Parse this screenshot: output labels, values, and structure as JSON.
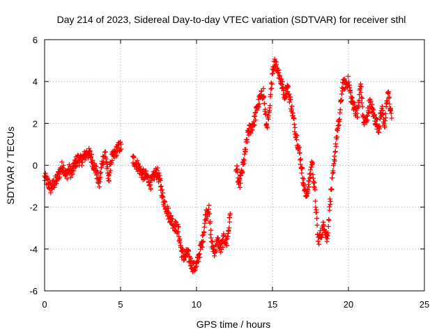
{
  "chart_data": {
    "type": "scatter",
    "title": "Day 214 of 2023, Sidereal Day-to-day VTEC variation (SDTVAR) for receiver sthl",
    "xlabel": "GPS time / hours",
    "ylabel": "SDTVAR / TECUs",
    "xlim": [
      0,
      25
    ],
    "ylim": [
      -6,
      6
    ],
    "xticks": [
      "0",
      "5",
      "10",
      "15",
      "20",
      "25"
    ],
    "yticks": [
      "-6",
      "-4",
      "-2",
      "0",
      "2",
      "4",
      "6"
    ],
    "grid": true,
    "marker": "plus",
    "color": "#ff0000",
    "series": [
      {
        "name": "SDTVAR",
        "x": [
          0.0,
          0.2,
          0.4,
          0.6,
          0.8,
          1.0,
          1.2,
          1.4,
          1.6,
          1.8,
          2.0,
          2.2,
          2.4,
          2.6,
          2.8,
          3.0,
          3.2,
          3.4,
          3.6,
          3.8,
          4.0,
          4.2,
          4.4,
          4.6,
          4.8,
          5.0,
          5.8,
          6.0,
          6.2,
          6.4,
          6.6,
          6.8,
          7.0,
          7.2,
          7.4,
          7.6,
          7.8,
          8.0,
          8.2,
          8.4,
          8.6,
          8.8,
          9.0,
          9.2,
          9.4,
          9.6,
          9.8,
          10.0,
          10.2,
          10.4,
          10.6,
          10.8,
          11.0,
          11.2,
          11.4,
          11.6,
          11.8,
          12.0,
          12.2,
          12.6,
          12.8,
          13.0,
          13.2,
          13.4,
          13.6,
          13.8,
          14.0,
          14.2,
          14.4,
          14.6,
          14.8,
          15.0,
          15.2,
          15.4,
          15.6,
          15.8,
          16.0,
          16.2,
          16.4,
          16.6,
          16.8,
          17.0,
          17.2,
          17.4,
          17.6,
          17.8,
          18.0,
          18.2,
          18.4,
          18.6,
          18.8,
          19.0,
          19.2,
          19.4,
          19.6,
          19.8,
          20.0,
          20.2,
          20.4,
          20.6,
          20.8,
          21.0,
          21.2,
          21.4,
          21.6,
          21.8,
          22.0,
          22.2,
          22.4,
          22.6,
          22.8
        ],
        "y": [
          -0.6,
          -0.8,
          -1.1,
          -0.9,
          -0.7,
          -0.3,
          0.0,
          -0.5,
          -0.2,
          -0.4,
          0.1,
          0.3,
          0.2,
          0.4,
          0.6,
          0.5,
          0.1,
          -0.3,
          -0.9,
          0.2,
          0.6,
          -0.7,
          0.3,
          0.5,
          0.8,
          0.9,
          0.3,
          0.1,
          -0.1,
          -0.4,
          -0.5,
          -0.6,
          -0.9,
          -0.5,
          -0.3,
          -0.8,
          -1.6,
          -2.0,
          -2.4,
          -2.7,
          -2.9,
          -3.1,
          -4.1,
          -4.4,
          -4.2,
          -4.6,
          -4.9,
          -4.8,
          -4.2,
          -3.6,
          -2.4,
          -2.0,
          -3.8,
          -4.1,
          -3.6,
          -4.0,
          -3.5,
          -3.7,
          -2.5,
          0.0,
          -1.0,
          -0.3,
          0.6,
          1.6,
          1.8,
          2.1,
          2.8,
          3.2,
          3.5,
          1.9,
          2.4,
          4.6,
          5.0,
          4.4,
          3.9,
          3.4,
          3.7,
          3.0,
          2.1,
          1.3,
          0.5,
          -0.6,
          -1.5,
          -0.9,
          0.2,
          -1.4,
          -3.6,
          -3.3,
          -2.8,
          -3.6,
          -1.6,
          -0.4,
          1.3,
          2.1,
          3.8,
          3.9,
          4.0,
          3.1,
          2.8,
          2.4,
          3.9,
          2.0,
          2.2,
          3.0,
          2.6,
          2.1,
          1.8,
          2.7,
          1.9,
          3.5,
          2.5
        ]
      }
    ]
  }
}
